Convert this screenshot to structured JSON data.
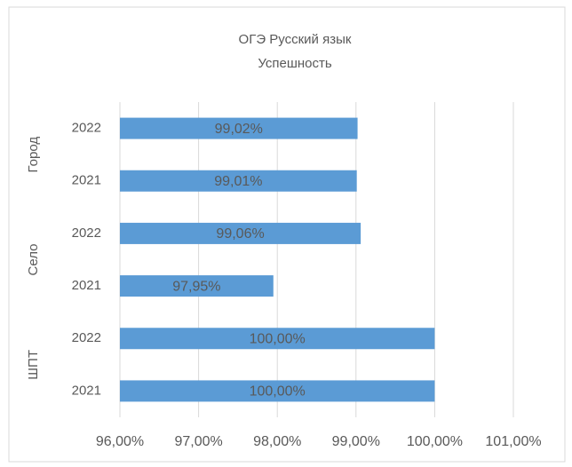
{
  "chart_data": {
    "type": "barh",
    "title": "ОГЭ Русский язык",
    "subtitle": "Успешность",
    "groups": [
      "Город",
      "Село",
      "ШПТ"
    ],
    "categories": [
      "2022",
      "2021",
      "2022",
      "2021",
      "2022",
      "2021"
    ],
    "values": [
      99.02,
      99.01,
      99.06,
      97.95,
      100,
      100
    ],
    "value_labels": [
      "99,02%",
      "99,01%",
      "99,06%",
      "97,95%",
      "100,00%",
      "100,00%"
    ],
    "color": "#5b9bd5",
    "xlim": [
      96,
      101
    ],
    "xticks": [
      {
        "value": 96,
        "label": "96,00%"
      },
      {
        "value": 97,
        "label": "97,00%"
      },
      {
        "value": 98,
        "label": "98,00%"
      },
      {
        "value": 99,
        "label": "99,00%"
      },
      {
        "value": 100,
        "label": "100,00%"
      },
      {
        "value": 101,
        "label": "101,00%"
      }
    ],
    "grid": true
  }
}
